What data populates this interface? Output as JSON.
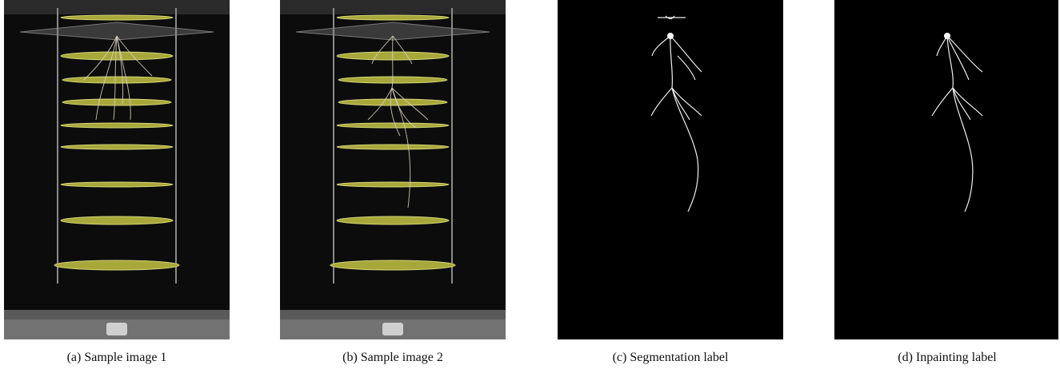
{
  "figure": {
    "panels": [
      {
        "caption": "(a) Sample image 1"
      },
      {
        "caption": "(b) Sample image 2"
      },
      {
        "caption": "(c) Segmentation label"
      },
      {
        "caption": "(d) Inpainting label"
      }
    ]
  }
}
